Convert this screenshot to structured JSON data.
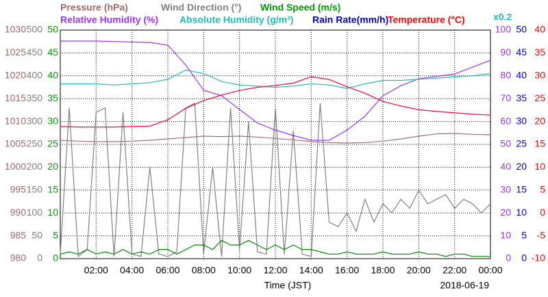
{
  "chart_data": {
    "type": "line",
    "x_label": "Time (JST)",
    "date": "2018-06-19",
    "xlim": [
      0,
      24
    ],
    "xticks": [
      {
        "value": 2,
        "label": "02:00"
      },
      {
        "value": 4,
        "label": "04:00"
      },
      {
        "value": 6,
        "label": "06:00"
      },
      {
        "value": 8,
        "label": "08:00"
      },
      {
        "value": 10,
        "label": "10:00"
      },
      {
        "value": 12,
        "label": "12:00"
      },
      {
        "value": 14,
        "label": "14:00"
      },
      {
        "value": 16,
        "label": "16:00"
      },
      {
        "value": 18,
        "label": "18:00"
      },
      {
        "value": 20,
        "label": "20:00"
      },
      {
        "value": 22,
        "label": "22:00"
      },
      {
        "value": 24,
        "label": "00:00"
      }
    ],
    "grid": true,
    "axes": [
      {
        "name": "Pressure (hPa)",
        "color": "#a06868",
        "lim": [
          980,
          1030
        ],
        "ticks": [
          980,
          985,
          990,
          995,
          1000,
          1005,
          1010,
          1015,
          1020,
          1025,
          1030
        ]
      },
      {
        "name": "Wind Direction (°)",
        "color": "#808080",
        "lim": [
          0,
          500
        ],
        "ticks": [
          0,
          50,
          100,
          150,
          200,
          250,
          300,
          350,
          400,
          450,
          500
        ]
      },
      {
        "name": "Wind Speed (m/s)",
        "color": "#009900",
        "lim": [
          0,
          50
        ],
        "ticks": [
          0,
          5,
          10,
          15,
          20,
          25,
          30,
          35,
          40,
          45,
          50
        ]
      },
      {
        "name": "Relative Humidity (%)",
        "color": "#9933ff",
        "lim": [
          0,
          100
        ],
        "ticks": [
          0,
          10,
          20,
          30,
          40,
          50,
          60,
          70,
          80,
          90,
          100
        ]
      },
      {
        "name": "Rain Rate(mm/h)",
        "color": "#0000cc",
        "lim": [
          0,
          50
        ],
        "ticks": [
          0,
          5,
          10,
          15,
          20,
          25,
          30,
          35,
          40,
          45,
          50
        ]
      },
      {
        "name": "Temperature (°C)",
        "color": "#ff0000",
        "lim": [
          -10,
          40
        ],
        "ticks": [
          -10,
          -5,
          0,
          5,
          10,
          15,
          20,
          25,
          30,
          35,
          40
        ]
      }
    ],
    "series": [
      {
        "name": "Pressure (hPa)",
        "axis": 0,
        "color": "#a07070",
        "x": [
          0,
          1,
          2,
          3,
          4,
          5,
          6,
          7,
          8,
          9,
          10,
          11,
          12,
          13,
          14,
          15,
          16,
          17,
          18,
          19,
          20,
          21,
          22,
          23,
          24
        ],
        "values": [
          1005.9,
          1005.7,
          1005.6,
          1005.6,
          1005.7,
          1005.9,
          1006.2,
          1006.5,
          1006.8,
          1006.7,
          1006.8,
          1006.6,
          1006.3,
          1006.0,
          1005.6,
          1005.4,
          1005.3,
          1005.4,
          1005.7,
          1006.2,
          1006.8,
          1007.3,
          1007.4,
          1007.2,
          1007.1
        ]
      },
      {
        "name": "Wind Direction (°)",
        "axis": 1,
        "color": "#808080",
        "x": [
          0,
          0.5,
          1,
          1.5,
          2,
          2.5,
          3,
          3.5,
          4,
          4.5,
          5,
          5.5,
          6,
          6.5,
          7,
          7.5,
          8,
          8.5,
          9,
          9.5,
          10,
          10.5,
          11,
          11.5,
          12,
          12.5,
          13,
          13.5,
          14,
          14.5,
          15,
          15.5,
          16,
          16.5,
          17,
          17.5,
          18,
          18.5,
          19,
          19.5,
          20,
          20.5,
          21,
          21.5,
          22,
          22.5,
          23,
          23.5,
          24
        ],
        "values": [
          10,
          330,
          5,
          20,
          320,
          330,
          5,
          320,
          10,
          5,
          200,
          10,
          5,
          15,
          330,
          340,
          10,
          200,
          5,
          330,
          20,
          300,
          15,
          10,
          330,
          10,
          280,
          10,
          5,
          340,
          80,
          70,
          100,
          60,
          130,
          80,
          120,
          100,
          130,
          110,
          150,
          120,
          130,
          140,
          110,
          130,
          120,
          100,
          120
        ]
      },
      {
        "name": "Wind Speed (m/s)",
        "axis": 2,
        "color": "#008800",
        "x": [
          0,
          0.5,
          1,
          1.5,
          2,
          2.5,
          3,
          3.5,
          4,
          4.5,
          5,
          5.5,
          6,
          6.5,
          7,
          7.5,
          8,
          8.5,
          9,
          9.5,
          10,
          10.5,
          11,
          11.5,
          12,
          12.5,
          13,
          13.5,
          14,
          14.5,
          15,
          15.5,
          16,
          16.5,
          17,
          17.5,
          18,
          18.5,
          19,
          19.5,
          20,
          20.5,
          21,
          21.5,
          22,
          22.5,
          23,
          23.5,
          24
        ],
        "values": [
          1,
          1.5,
          1,
          2,
          1,
          1.5,
          1,
          2,
          1,
          1.5,
          1,
          2,
          2,
          1,
          2,
          3,
          3,
          2,
          4,
          3,
          3,
          4,
          3,
          2,
          3,
          2,
          3,
          2,
          2,
          1.5,
          1,
          1,
          1.5,
          1,
          1,
          1,
          1.5,
          1,
          1,
          1,
          1.5,
          1,
          1,
          0.5,
          1,
          1,
          0.5,
          0.5,
          0.5
        ]
      },
      {
        "name": "Relative Humidity (%)",
        "axis": 3,
        "color": "#9933ff",
        "x": [
          0,
          1,
          2,
          3,
          4,
          5,
          6,
          7,
          8,
          9,
          10,
          11,
          12,
          13,
          14,
          15,
          16,
          17,
          18,
          19,
          20,
          21,
          22,
          23,
          24
        ],
        "values": [
          95.2,
          95.2,
          95.2,
          95,
          94.8,
          94.6,
          93.4,
          84.7,
          73.7,
          71.3,
          65.3,
          59.3,
          56.3,
          53.9,
          51.8,
          51.8,
          56.3,
          62.3,
          71.3,
          75.7,
          78.7,
          79.8,
          80.8,
          83.8,
          86.8
        ]
      },
      {
        "name": "Absolute Humidity (g/m³)",
        "axis": 3,
        "scale": 0.2,
        "scale_label": "x0.2",
        "color": "#22bbbb",
        "x": [
          0,
          1,
          2,
          3,
          4,
          5,
          6,
          7,
          8,
          9,
          10,
          11,
          12,
          13,
          14,
          15,
          16,
          17,
          18,
          19,
          20,
          21,
          22,
          23,
          24
        ],
        "values": [
          15.3,
          15.3,
          15.3,
          15.2,
          15.3,
          15.4,
          15.7,
          16.5,
          16.2,
          15.5,
          15.2,
          15.1,
          15.0,
          15.1,
          15.3,
          15.2,
          14.9,
          15.3,
          15.6,
          15.6,
          15.7,
          15.8,
          15.9,
          16.0,
          16.2
        ]
      },
      {
        "name": "Temperature (°C)",
        "axis": 5,
        "color": "#ff0033",
        "x": [
          0,
          1,
          2,
          3,
          4,
          5,
          6,
          7,
          8,
          9,
          10,
          11,
          12,
          13,
          14,
          15,
          16,
          17,
          18,
          19,
          20,
          21,
          22,
          23,
          24
        ],
        "values": [
          18.9,
          18.8,
          18.8,
          18.8,
          18.9,
          19.0,
          20.4,
          22.9,
          24.6,
          25.8,
          26.8,
          27.5,
          27.9,
          28.4,
          29.8,
          29.2,
          27.6,
          26.2,
          24.4,
          23.4,
          22.6,
          22.2,
          21.9,
          21.6,
          21.4
        ]
      }
    ]
  }
}
